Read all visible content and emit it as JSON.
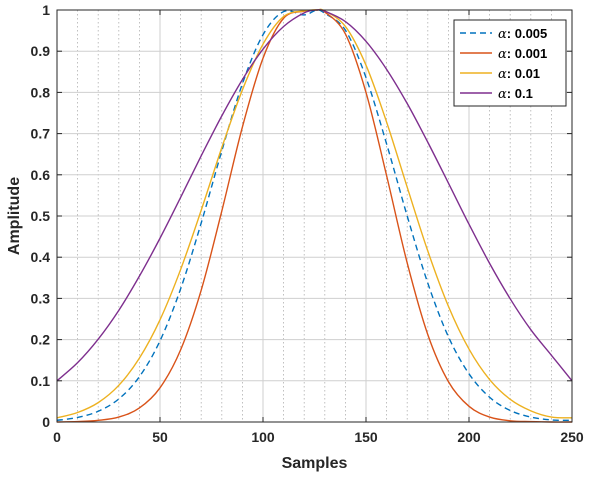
{
  "chart_data": {
    "type": "line",
    "xlabel": "Samples",
    "ylabel": "Amplitude",
    "xlim": [
      0,
      250
    ],
    "ylim": [
      0,
      1
    ],
    "xticks": [
      "0",
      "50",
      "100",
      "150",
      "200",
      "250"
    ],
    "yticks": [
      "0",
      "0.1",
      "0.2",
      "0.3",
      "0.4",
      "0.5",
      "0.6",
      "0.7",
      "0.8",
      "0.9",
      "1"
    ],
    "grid": true,
    "minor_grid": true,
    "legend_position": "top-right",
    "x": [
      0,
      10,
      20,
      30,
      40,
      50,
      60,
      70,
      80,
      90,
      100,
      110,
      120,
      126,
      130,
      140,
      150,
      160,
      170,
      180,
      190,
      200,
      210,
      220,
      230,
      240,
      250
    ],
    "series": [
      {
        "name": "0.005",
        "color": "#0072BD",
        "dash": true,
        "values": [
          0.004,
          0.011,
          0.026,
          0.056,
          0.11,
          0.197,
          0.323,
          0.483,
          0.658,
          0.821,
          0.94,
          0.996,
          0.988,
          1.0,
          0.992,
          0.951,
          0.836,
          0.675,
          0.5,
          0.337,
          0.207,
          0.117,
          0.06,
          0.028,
          0.012,
          0.005,
          0.004
        ]
      },
      {
        "name": "0.001",
        "color": "#D95319",
        "dash": false,
        "values": [
          0.0,
          0.001,
          0.004,
          0.012,
          0.034,
          0.083,
          0.175,
          0.32,
          0.512,
          0.716,
          0.883,
          0.98,
          0.997,
          1.0,
          0.995,
          0.942,
          0.8,
          0.598,
          0.386,
          0.212,
          0.098,
          0.038,
          0.012,
          0.003,
          0.001,
          0.0,
          0.0
        ]
      },
      {
        "name": "0.01",
        "color": "#EDB120",
        "dash": false,
        "values": [
          0.01,
          0.023,
          0.047,
          0.089,
          0.155,
          0.248,
          0.37,
          0.514,
          0.666,
          0.806,
          0.917,
          0.984,
          0.998,
          1.0,
          0.998,
          0.96,
          0.866,
          0.728,
          0.57,
          0.415,
          0.281,
          0.177,
          0.103,
          0.055,
          0.027,
          0.012,
          0.01
        ]
      },
      {
        "name": "0.1",
        "color": "#7E2F8E",
        "dash": false,
        "values": [
          0.1,
          0.144,
          0.201,
          0.271,
          0.354,
          0.446,
          0.545,
          0.646,
          0.743,
          0.831,
          0.905,
          0.96,
          0.993,
          1.0,
          0.997,
          0.972,
          0.924,
          0.856,
          0.773,
          0.679,
          0.58,
          0.48,
          0.385,
          0.299,
          0.224,
          0.162,
          0.1
        ]
      }
    ],
    "legend_prefix": "α",
    "legend_separator": ": "
  }
}
